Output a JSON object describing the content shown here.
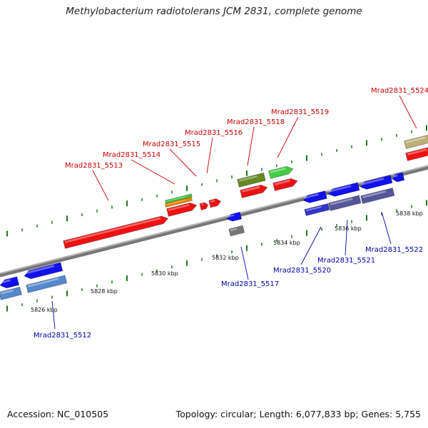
{
  "title": "Methylobacterium radiotolerans JCM 2831, complete genome",
  "footer": {
    "accession": "Accession: NC_010505",
    "topology": "Topology: circular; Length: 6,077,833 bp; Genes: 5,755"
  },
  "colors": {
    "forward_label": "#cc0000",
    "reverse_label": "#0000aa",
    "tick": "#1a7a1a",
    "backbone": "#8c8c8c"
  },
  "scale_labels": [
    "5826 kbp",
    "5828 kbp",
    "5830 kbp",
    "5832 kbp",
    "5834 kbp",
    "5836 kbp",
    "5838 kbp"
  ],
  "forward_genes": [
    "Mrad2831_5513",
    "Mrad2831_5514",
    "Mrad2831_5515",
    "Mrad2831_5516",
    "Mrad2831_5518",
    "Mrad2831_5519",
    "Mrad2831_5524"
  ],
  "reverse_genes": [
    "Mrad2831_5512",
    "Mrad2831_5517",
    "Mrad2831_5520",
    "Mrad2831_5521",
    "Mrad2831_5522"
  ]
}
